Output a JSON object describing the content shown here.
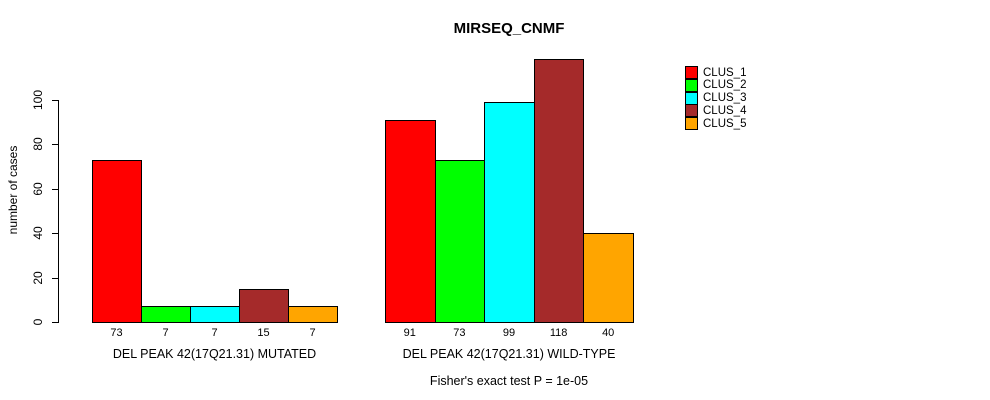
{
  "title": "MIRSEQ_CNMF",
  "chart_data": {
    "type": "bar",
    "title": "MIRSEQ_CNMF",
    "ylabel": "number of cases",
    "footnote": "Fisher's exact test P = 1e-05",
    "yticks": [
      0,
      20,
      40,
      60,
      80,
      100
    ],
    "ylim": [
      0,
      118
    ],
    "grid": false,
    "legend_position": "top-right",
    "bar_edge_color": "#000000",
    "categories": [
      "CLUS_1",
      "CLUS_2",
      "CLUS_3",
      "CLUS_4",
      "CLUS_5"
    ],
    "series_colors": [
      "#FF0000",
      "#00FF00",
      "#00FFFF",
      "#A52A2A",
      "#FFA500"
    ],
    "groups": [
      {
        "label": "DEL PEAK 42(17Q21.31) MUTATED",
        "values": [
          73,
          7,
          7,
          15,
          7
        ]
      },
      {
        "label": "DEL PEAK 42(17Q21.31) WILD-TYPE",
        "values": [
          91,
          73,
          99,
          118,
          40
        ]
      }
    ],
    "legend": [
      {
        "label": "CLUS_1",
        "color": "#FF0000"
      },
      {
        "label": "CLUS_2",
        "color": "#00FF00"
      },
      {
        "label": "CLUS_3",
        "color": "#00FFFF"
      },
      {
        "label": "CLUS_4",
        "color": "#A52A2A"
      },
      {
        "label": "CLUS_5",
        "color": "#FFA500"
      }
    ]
  }
}
